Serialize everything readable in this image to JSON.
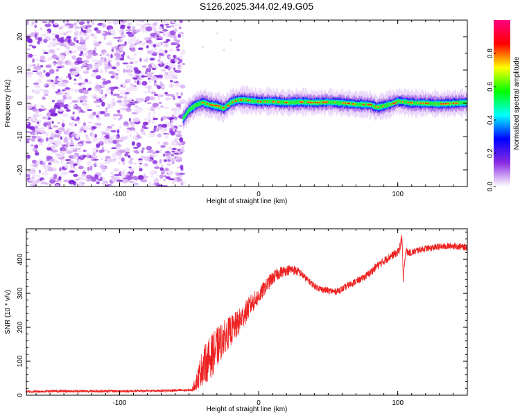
{
  "title": "S126.2025.344.02.49.G05",
  "chart_data": [
    {
      "type": "heatmap",
      "name": "spectrogram",
      "xlabel": "Height of straight line (km)",
      "ylabel": "Frequency (Hz)",
      "xlim": [
        -167,
        150
      ],
      "ylim": [
        -25,
        25
      ],
      "xticks": [
        -100,
        0,
        100
      ],
      "xtick_labels": [
        "-100",
        "0",
        "100"
      ],
      "yticks": [
        -20,
        -10,
        0,
        10,
        20
      ],
      "ytick_labels": [
        "-20",
        "-10",
        "0",
        "10",
        "20"
      ],
      "noise_region_km": [
        -167,
        -54
      ],
      "signal_start_km": -54,
      "ridge": {
        "x": [
          -54,
          -50,
          -45,
          -40,
          -35,
          -30,
          -25,
          -20,
          -15,
          -10,
          -5,
          0,
          10,
          20,
          30,
          40,
          50,
          60,
          70,
          80,
          85,
          90,
          95,
          100,
          110,
          120,
          130,
          140,
          150
        ],
        "freq": [
          -4.5,
          -2,
          -0.5,
          0.3,
          -0.5,
          -0.8,
          -1.5,
          0.2,
          1,
          1,
          0.7,
          0.5,
          0.5,
          0.2,
          0.4,
          0.2,
          0.4,
          0.1,
          -0.3,
          -0.4,
          -1.2,
          -0.8,
          -0.2,
          0.6,
          0.1,
          0,
          -0.2,
          0,
          0.2
        ]
      },
      "colorbar": {
        "label": "Normalized spectral amplitude",
        "ticks": [
          0.0,
          0.2,
          0.4,
          0.6,
          0.8
        ],
        "tick_labels": [
          "0.0",
          "0.2",
          "0.4",
          "0.6",
          "0.8"
        ],
        "range": [
          0,
          1
        ],
        "stops": [
          "#ffffff",
          "#8a2be2",
          "#0000ff",
          "#00ffff",
          "#00ff00",
          "#ffff00",
          "#ff0000",
          "#ff0080"
        ]
      }
    },
    {
      "type": "line",
      "name": "snr",
      "xlabel": "Height of straight line (km)",
      "ylabel": "SNR (10 * v/v)",
      "xlim": [
        -167,
        150
      ],
      "ylim": [
        0,
        490
      ],
      "xticks": [
        -100,
        0,
        100
      ],
      "xtick_labels": [
        "-100",
        "0",
        "100"
      ],
      "yticks": [
        0,
        100,
        200,
        300,
        400
      ],
      "ytick_labels": [
        "0",
        "100",
        "200",
        "300",
        "400"
      ],
      "color": "#ee2222",
      "series": [
        {
          "name": "SNR",
          "x": [
            -167,
            -150,
            -120,
            -90,
            -60,
            -48,
            -44,
            -42,
            -40,
            -35,
            -30,
            -25,
            -20,
            -15,
            -10,
            -5,
            0,
            5,
            10,
            15,
            20,
            25,
            30,
            35,
            40,
            45,
            50,
            55,
            60,
            65,
            70,
            75,
            80,
            85,
            90,
            95,
            100,
            102,
            103,
            104,
            105,
            106,
            107,
            110,
            115,
            120,
            130,
            140,
            150
          ],
          "y": [
            10,
            12,
            12,
            12,
            14,
            15,
            45,
            70,
            85,
            110,
            140,
            170,
            190,
            210,
            240,
            270,
            290,
            320,
            345,
            360,
            368,
            370,
            360,
            340,
            322,
            312,
            308,
            305,
            312,
            325,
            335,
            345,
            360,
            380,
            395,
            410,
            420,
            440,
            470,
            330,
            400,
            430,
            420,
            420,
            428,
            432,
            437,
            440,
            435
          ],
          "noise_amplitude": [
            4,
            4,
            4,
            4,
            4,
            4,
            30,
            45,
            55,
            65,
            60,
            50,
            45,
            40,
            35,
            30,
            25,
            22,
            20,
            18,
            15,
            15,
            12,
            10,
            10,
            10,
            10,
            10,
            10,
            10,
            10,
            10,
            12,
            12,
            12,
            12,
            12,
            15,
            20,
            10,
            12,
            10,
            10,
            10,
            10,
            10,
            10,
            10,
            10
          ]
        }
      ]
    }
  ]
}
